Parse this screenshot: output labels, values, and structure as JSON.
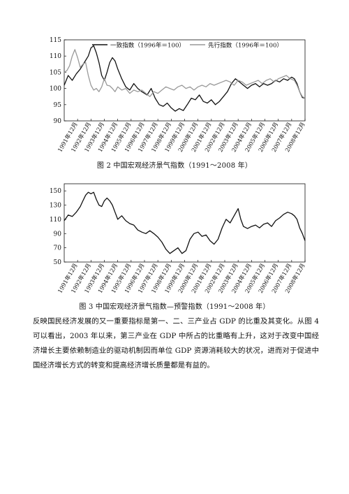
{
  "chart_data": [
    {
      "type": "line",
      "title": "",
      "xlabel": "",
      "ylabel": "",
      "ylim": [
        90,
        115
      ],
      "yticks": [
        90,
        95,
        100,
        105,
        110,
        115
      ],
      "categories": [
        "1991年12月",
        "1992年12月",
        "1993年12月",
        "1994年12月",
        "1995年12月",
        "1996年12月",
        "1997年12月",
        "1998年12月",
        "1999年12月",
        "2000年12月",
        "2001年12月",
        "2002年12月",
        "2003年12月",
        "2004年12月",
        "2005年12月",
        "2006年12月",
        "2007年12月",
        "2008年12月"
      ],
      "x_start": 1991.0,
      "x_end": 2009.0,
      "legend_position": "top",
      "series": [
        {
          "name": "一致指数（1996年＝100）",
          "color": "#111111",
          "points": [
            [
              1991.0,
              101
            ],
            [
              1991.3,
              104
            ],
            [
              1991.6,
              102.5
            ],
            [
              1991.9,
              104.5
            ],
            [
              1992.2,
              106
            ],
            [
              1992.5,
              108
            ],
            [
              1992.8,
              110
            ],
            [
              1993.0,
              112.5
            ],
            [
              1993.2,
              113.2
            ],
            [
              1993.4,
              111
            ],
            [
              1993.6,
              108
            ],
            [
              1993.8,
              104
            ],
            [
              1994.0,
              102.5
            ],
            [
              1994.2,
              105
            ],
            [
              1994.4,
              108
            ],
            [
              1994.6,
              109.5
            ],
            [
              1994.8,
              108.5
            ],
            [
              1995.0,
              106
            ],
            [
              1995.3,
              103
            ],
            [
              1995.6,
              100.5
            ],
            [
              1995.9,
              99.5
            ],
            [
              1996.2,
              101.5
            ],
            [
              1996.5,
              100
            ],
            [
              1996.8,
              99
            ],
            [
              1997.2,
              98
            ],
            [
              1997.5,
              100
            ],
            [
              1997.8,
              97
            ],
            [
              1998.1,
              95
            ],
            [
              1998.4,
              94.5
            ],
            [
              1998.7,
              95.5
            ],
            [
              1999.0,
              94
            ],
            [
              1999.3,
              93
            ],
            [
              1999.6,
              93.8
            ],
            [
              1999.9,
              93.2
            ],
            [
              2000.2,
              95
            ],
            [
              2000.5,
              97
            ],
            [
              2000.8,
              96.5
            ],
            [
              2001.1,
              98
            ],
            [
              2001.4,
              96
            ],
            [
              2001.7,
              95.5
            ],
            [
              2002.0,
              96.5
            ],
            [
              2002.3,
              95
            ],
            [
              2002.6,
              96
            ],
            [
              2002.9,
              97.5
            ],
            [
              2003.2,
              99
            ],
            [
              2003.5,
              101.5
            ],
            [
              2003.8,
              103
            ],
            [
              2004.1,
              102
            ],
            [
              2004.4,
              101
            ],
            [
              2004.7,
              100
            ],
            [
              2005.0,
              101
            ],
            [
              2005.3,
              101.5
            ],
            [
              2005.6,
              100.5
            ],
            [
              2005.9,
              101.5
            ],
            [
              2006.2,
              101
            ],
            [
              2006.5,
              101.5
            ],
            [
              2006.8,
              102.5
            ],
            [
              2007.1,
              102
            ],
            [
              2007.4,
              103
            ],
            [
              2007.7,
              102.5
            ],
            [
              2008.0,
              103.5
            ],
            [
              2008.2,
              103
            ],
            [
              2008.4,
              101.5
            ],
            [
              2008.6,
              99
            ],
            [
              2008.8,
              97.2
            ],
            [
              2009.0,
              97
            ]
          ]
        },
        {
          "name": "先行指数（1996年＝100）",
          "color": "#999999",
          "points": [
            [
              1991.0,
              105
            ],
            [
              1991.2,
              105.5
            ],
            [
              1991.4,
              107
            ],
            [
              1991.6,
              110
            ],
            [
              1991.8,
              112
            ],
            [
              1992.0,
              109.5
            ],
            [
              1992.2,
              106.5
            ],
            [
              1992.4,
              107.5
            ],
            [
              1992.6,
              108
            ],
            [
              1992.8,
              104
            ],
            [
              1993.0,
              101
            ],
            [
              1993.2,
              99.5
            ],
            [
              1993.4,
              100
            ],
            [
              1993.6,
              99
            ],
            [
              1993.8,
              100.5
            ],
            [
              1994.0,
              103
            ],
            [
              1994.2,
              101
            ],
            [
              1994.4,
              100.8
            ],
            [
              1994.6,
              100
            ],
            [
              1994.8,
              99
            ],
            [
              1995.0,
              100.5
            ],
            [
              1995.3,
              99.5
            ],
            [
              1995.6,
              100
            ],
            [
              1995.9,
              98.5
            ],
            [
              1996.2,
              99.5
            ],
            [
              1996.5,
              99
            ],
            [
              1996.8,
              99.5
            ],
            [
              1997.1,
              98.5
            ],
            [
              1997.4,
              97.5
            ],
            [
              1997.7,
              99
            ],
            [
              1998.0,
              98.5
            ],
            [
              1998.3,
              99.5
            ],
            [
              1998.6,
              100.5
            ],
            [
              1998.9,
              100
            ],
            [
              1999.2,
              99.5
            ],
            [
              1999.5,
              100.5
            ],
            [
              1999.8,
              101
            ],
            [
              2000.1,
              100
            ],
            [
              2000.4,
              100.5
            ],
            [
              2000.7,
              99.5
            ],
            [
              2001.0,
              100.5
            ],
            [
              2001.3,
              101
            ],
            [
              2001.6,
              100.5
            ],
            [
              2001.9,
              101.5
            ],
            [
              2002.2,
              101
            ],
            [
              2002.5,
              101.5
            ],
            [
              2002.8,
              102
            ],
            [
              2003.1,
              102.5
            ],
            [
              2003.4,
              102
            ],
            [
              2003.7,
              101
            ],
            [
              2004.0,
              102.5
            ],
            [
              2004.3,
              102
            ],
            [
              2004.6,
              101
            ],
            [
              2004.9,
              101.5
            ],
            [
              2005.2,
              102
            ],
            [
              2005.5,
              102.5
            ],
            [
              2005.8,
              101.5
            ],
            [
              2006.1,
              102.5
            ],
            [
              2006.4,
              103
            ],
            [
              2006.7,
              102
            ],
            [
              2007.0,
              103
            ],
            [
              2007.3,
              103.5
            ],
            [
              2007.6,
              104
            ],
            [
              2007.9,
              103
            ],
            [
              2008.2,
              102.5
            ],
            [
              2008.4,
              101
            ],
            [
              2008.6,
              99
            ],
            [
              2008.8,
              97.5
            ],
            [
              2009.0,
              97
            ]
          ]
        }
      ]
    },
    {
      "type": "line",
      "title": "",
      "xlabel": "",
      "ylabel": "",
      "ylim": [
        50,
        160
      ],
      "yticks": [
        50,
        70,
        90,
        110,
        130,
        150
      ],
      "categories": [
        "1991年12月",
        "1992年12月",
        "1993年12月",
        "1994年12月",
        "1995年12月",
        "1996年12月",
        "1997年12月",
        "1998年12月",
        "1999年12月",
        "2000年12月",
        "2001年12月",
        "2002年12月",
        "2003年12月",
        "2004年12月",
        "2005年12月",
        "2006年12月",
        "2007年12月",
        "2008年12月"
      ],
      "x_start": 1991.0,
      "x_end": 2009.0,
      "series": [
        {
          "name": "",
          "color": "#111111",
          "points": [
            [
              1991.0,
              108
            ],
            [
              1991.3,
              116
            ],
            [
              1991.6,
              114
            ],
            [
              1991.9,
              120
            ],
            [
              1992.2,
              128
            ],
            [
              1992.4,
              136
            ],
            [
              1992.6,
              144
            ],
            [
              1992.8,
              148
            ],
            [
              1993.0,
              146
            ],
            [
              1993.2,
              148
            ],
            [
              1993.4,
              138
            ],
            [
              1993.6,
              130
            ],
            [
              1993.8,
              128
            ],
            [
              1994.0,
              136
            ],
            [
              1994.2,
              140
            ],
            [
              1994.4,
              136
            ],
            [
              1994.6,
              130
            ],
            [
              1994.8,
              120
            ],
            [
              1995.0,
              110
            ],
            [
              1995.3,
              115
            ],
            [
              1995.6,
              108
            ],
            [
              1995.9,
              104
            ],
            [
              1996.2,
              102
            ],
            [
              1996.5,
              95
            ],
            [
              1996.8,
              92
            ],
            [
              1997.1,
              90
            ],
            [
              1997.4,
              94
            ],
            [
              1997.7,
              90
            ],
            [
              1998.0,
              85
            ],
            [
              1998.3,
              78
            ],
            [
              1998.6,
              68
            ],
            [
              1998.9,
              62
            ],
            [
              1999.2,
              66
            ],
            [
              1999.5,
              70
            ],
            [
              1999.8,
              62
            ],
            [
              2000.1,
              66
            ],
            [
              2000.4,
              82
            ],
            [
              2000.7,
              90
            ],
            [
              2001.0,
              92
            ],
            [
              2001.3,
              86
            ],
            [
              2001.6,
              88
            ],
            [
              2001.9,
              80
            ],
            [
              2002.2,
              75
            ],
            [
              2002.5,
              82
            ],
            [
              2002.8,
              98
            ],
            [
              2003.1,
              110
            ],
            [
              2003.4,
              105
            ],
            [
              2003.7,
              115
            ],
            [
              2004.0,
              125
            ],
            [
              2004.2,
              110
            ],
            [
              2004.4,
              100
            ],
            [
              2004.7,
              97
            ],
            [
              2005.0,
              100
            ],
            [
              2005.3,
              102
            ],
            [
              2005.6,
              98
            ],
            [
              2005.9,
              103
            ],
            [
              2006.2,
              105
            ],
            [
              2006.5,
              100
            ],
            [
              2006.8,
              108
            ],
            [
              2007.1,
              112
            ],
            [
              2007.4,
              117
            ],
            [
              2007.7,
              120
            ],
            [
              2008.0,
              118
            ],
            [
              2008.2,
              115
            ],
            [
              2008.4,
              110
            ],
            [
              2008.6,
              98
            ],
            [
              2008.8,
              90
            ],
            [
              2009.0,
              80
            ]
          ]
        }
      ]
    }
  ],
  "captions": {
    "fig2": "图 2  中国宏观经济景气指数（1991～2008 年）",
    "fig3": "图 3  中国宏观经济景气指数—预警指数（1991～2008 年）"
  },
  "body_text": "反映国民经济发展的又一重要指标是第一、二、三产业占 GDP 的比重及其变化。从图 4 可以看出，2003 年以来，第三产业在 GDP 中所占的比重略有上升，这对于改变中国经济增长主要依赖制造业的驱动机制因而单位 GDP 资源消耗较大的状况，进而对于促进中国经济增长方式的转变和提高经济增长质量都是有益的。"
}
